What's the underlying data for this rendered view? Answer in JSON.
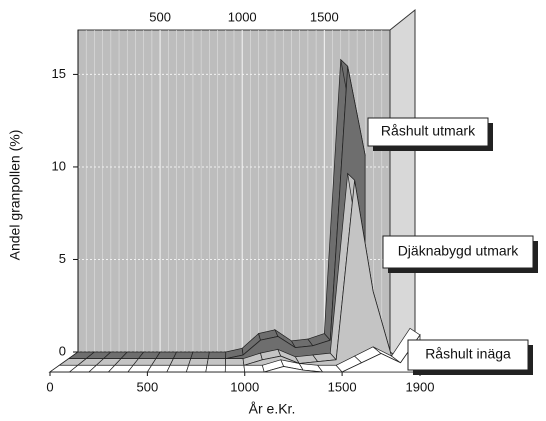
{
  "chart_data": {
    "type": "ribbon3d",
    "ylabel": "Andel granpollen (%)",
    "xlabel": "År e.Kr.",
    "x": [
      0,
      100,
      200,
      300,
      400,
      500,
      600,
      700,
      800,
      900,
      1000,
      1100,
      1200,
      1300,
      1400,
      1500,
      1600,
      1700,
      1800,
      1900
    ],
    "series": [
      {
        "name": "Råshult utmark",
        "color": "#6e6e6e",
        "values": [
          0,
          0,
          0,
          0,
          0,
          0,
          0,
          0,
          0,
          0,
          0.2,
          1.0,
          1.2,
          0.6,
          0.7,
          1.0,
          15.8,
          11,
          null,
          null
        ]
      },
      {
        "name": "Djäknabygd utmark",
        "color": "#c4c4c4",
        "values": [
          0,
          0,
          0,
          0,
          0,
          0,
          0,
          0,
          0,
          0,
          0,
          0.3,
          0.5,
          0.1,
          0.2,
          0.3,
          10,
          4,
          0.5,
          null
        ]
      },
      {
        "name": "Råshult inäga",
        "color": "#ffffff",
        "values": [
          0,
          0,
          0,
          0,
          0,
          0,
          0,
          0,
          0,
          0,
          0,
          0,
          0.3,
          0.1,
          0,
          0,
          0.5,
          1.0,
          0.5,
          2.0
        ]
      }
    ],
    "xlim": [
      0,
      1900
    ],
    "xticks": [
      0,
      500,
      1000,
      1500,
      1900
    ],
    "top_xticks": [
      500,
      1000,
      1500
    ],
    "ylim": [
      0,
      17.4
    ],
    "yticks": [
      0,
      5,
      10,
      15
    ],
    "grid": true
  }
}
